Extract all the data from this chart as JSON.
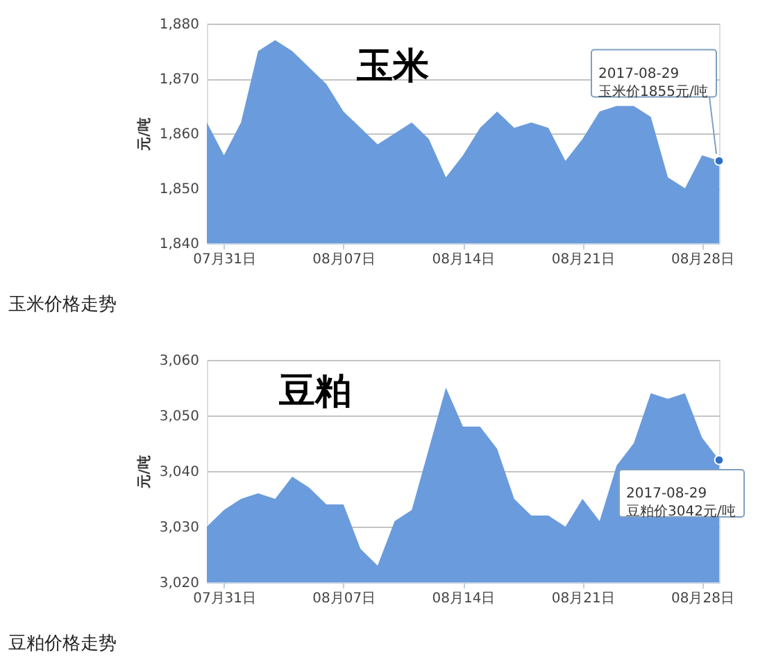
{
  "chart_data": [
    {
      "type": "area",
      "title": "玉米",
      "ylabel": "元/吨",
      "x": [
        "2017-07-30",
        "2017-07-31",
        "2017-08-01",
        "2017-08-02",
        "2017-08-03",
        "2017-08-04",
        "2017-08-05",
        "2017-08-06",
        "2017-08-07",
        "2017-08-08",
        "2017-08-09",
        "2017-08-10",
        "2017-08-11",
        "2017-08-12",
        "2017-08-13",
        "2017-08-14",
        "2017-08-15",
        "2017-08-16",
        "2017-08-17",
        "2017-08-18",
        "2017-08-19",
        "2017-08-20",
        "2017-08-21",
        "2017-08-22",
        "2017-08-23",
        "2017-08-24",
        "2017-08-25",
        "2017-08-26",
        "2017-08-27",
        "2017-08-28",
        "2017-08-29"
      ],
      "series": [
        {
          "color": "#6a9bdc",
          "values": [
            1862,
            1856,
            1862,
            1875,
            1877,
            1875,
            1872,
            1869,
            1864,
            1861,
            1858,
            1860,
            1862,
            1859,
            1852,
            1856,
            1861,
            1864,
            1861,
            1862,
            1861,
            1855,
            1859,
            1864,
            1865,
            1865,
            1863,
            1852,
            1850,
            1856,
            1855
          ]
        }
      ],
      "xlim": [
        "2017-07-30",
        "2017-08-29"
      ],
      "xticks": [
        {
          "value": "2017-07-31",
          "label": "07月31日"
        },
        {
          "value": "2017-08-07",
          "label": "08月07日"
        },
        {
          "value": "2017-08-14",
          "label": "08月14日"
        },
        {
          "value": "2017-08-21",
          "label": "08月21日"
        },
        {
          "value": "2017-08-28",
          "label": "08月28日"
        }
      ],
      "ylim": [
        1840,
        1880
      ],
      "yticks": [
        {
          "value": 1840,
          "label": "1,840"
        },
        {
          "value": 1850,
          "label": "1,850"
        },
        {
          "value": 1860,
          "label": "1,860"
        },
        {
          "value": 1870,
          "label": "1,870"
        },
        {
          "value": 1880,
          "label": "1,880"
        }
      ],
      "grid": "y",
      "annotations": [
        {
          "text": "2017-08-29\n玉米价1855元/吨",
          "x": "2017-08-29",
          "y": 1855
        },
        "玉米价格走势"
      ]
    },
    {
      "type": "area",
      "title": "豆粕",
      "ylabel": "元/吨",
      "x": [
        "2017-07-30",
        "2017-07-31",
        "2017-08-01",
        "2017-08-02",
        "2017-08-03",
        "2017-08-04",
        "2017-08-05",
        "2017-08-06",
        "2017-08-07",
        "2017-08-08",
        "2017-08-09",
        "2017-08-10",
        "2017-08-11",
        "2017-08-12",
        "2017-08-13",
        "2017-08-14",
        "2017-08-15",
        "2017-08-16",
        "2017-08-17",
        "2017-08-18",
        "2017-08-19",
        "2017-08-20",
        "2017-08-21",
        "2017-08-22",
        "2017-08-23",
        "2017-08-24",
        "2017-08-25",
        "2017-08-26",
        "2017-08-27",
        "2017-08-28",
        "2017-08-29"
      ],
      "series": [
        {
          "color": "#6a9bdc",
          "values": [
            3030,
            3033,
            3035,
            3036,
            3035,
            3039,
            3037,
            3034,
            3034,
            3026,
            3023,
            3031,
            3033,
            3044,
            3055,
            3048,
            3048,
            3044,
            3035,
            3032,
            3032,
            3030,
            3035,
            3031,
            3041,
            3045,
            3054,
            3053,
            3054,
            3046,
            3042
          ]
        }
      ],
      "xlim": [
        "2017-07-30",
        "2017-08-29"
      ],
      "xticks": [
        {
          "value": "2017-07-31",
          "label": "07月31日"
        },
        {
          "value": "2017-08-07",
          "label": "08月07日"
        },
        {
          "value": "2017-08-14",
          "label": "08月14日"
        },
        {
          "value": "2017-08-21",
          "label": "08月21日"
        },
        {
          "value": "2017-08-28",
          "label": "08月28日"
        }
      ],
      "ylim": [
        3020,
        3060
      ],
      "yticks": [
        {
          "value": 3020,
          "label": "3,020"
        },
        {
          "value": 3030,
          "label": "3,030"
        },
        {
          "value": 3040,
          "label": "3,040"
        },
        {
          "value": 3050,
          "label": "3,050"
        },
        {
          "value": 3060,
          "label": "3,060"
        }
      ],
      "grid": "y",
      "annotations": [
        {
          "text": "2017-08-29\n豆粕价3042元/吨",
          "x": "2017-08-29",
          "y": 3042
        },
        "豆粕价格走势"
      ]
    }
  ]
}
